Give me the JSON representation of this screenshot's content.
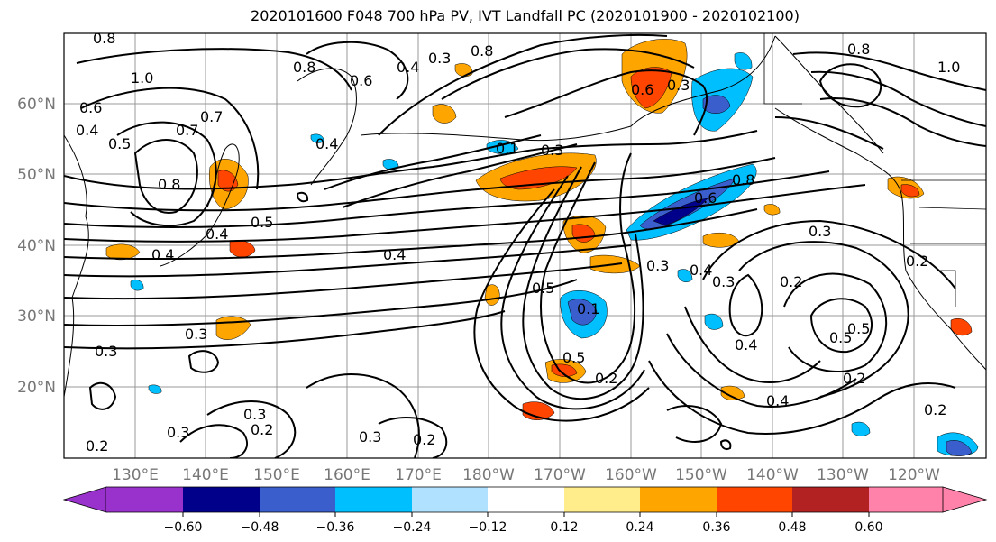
{
  "title": "2020101600 F048 700 hPa PV, IVT Landfall PC (2020101900 - 2020102100)",
  "lat_labels": [
    "60°N",
    "50°N",
    "40°N",
    "30°N",
    "20°N"
  ],
  "lon_labels": [
    "130°E",
    "140°E",
    "150°E",
    "160°E",
    "170°E",
    "180°W",
    "170°W",
    "160°W",
    "150°W",
    "140°W",
    "130°W",
    "120°W"
  ],
  "contour_labels": [
    "0.8",
    "1.0",
    "0.6",
    "0.4",
    "0.5",
    "0.7",
    "0.8",
    "0.8",
    "0.6",
    "0.4",
    "0.3",
    "0.8",
    "0.1",
    "0.4",
    "0.3",
    "0.8",
    "1.0",
    "0.6",
    "0.3",
    "0.5",
    "0.7",
    "0.5",
    "0.4",
    "0.4",
    "0.6",
    "0.8",
    "0.3",
    "0.5",
    "0.3",
    "0.2",
    "0.1",
    "0.3",
    "0.3",
    "0.4",
    "0.3",
    "0.4",
    "0.2",
    "0.5",
    "0.4",
    "0.5",
    "0.2",
    "0.3",
    "0.2",
    "0.2",
    "0.2",
    "0.3",
    "0.4",
    "0.2",
    "0.3",
    "0.2"
  ],
  "colorbar": {
    "colors": [
      "#9932cc",
      "#00008b",
      "#3a5fcd",
      "#00bfff",
      "#b0e2ff",
      "#ffffff",
      "#ffec8b",
      "#ffa500",
      "#ff4500",
      "#b22222",
      "#ff82ab"
    ],
    "ticks": [
      "−0.60",
      "−0.48",
      "−0.36",
      "−0.24",
      "−0.12",
      "0.12",
      "0.24",
      "0.36",
      "0.48",
      "0.60"
    ]
  }
}
